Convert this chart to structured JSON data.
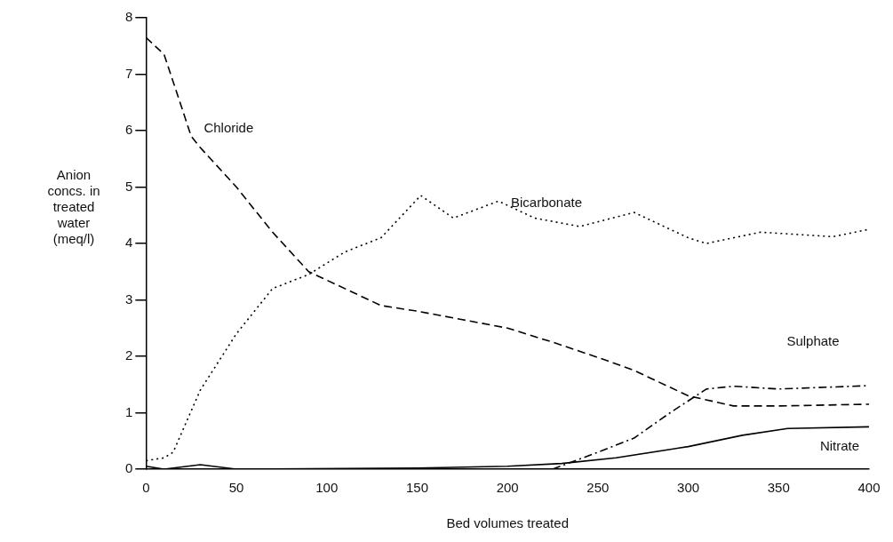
{
  "chart_data": {
    "type": "line",
    "xlabel": "Bed volumes treated",
    "ylabel": "Anion concs. in treated water (meq/l)",
    "xlim": [
      0,
      400
    ],
    "xticks": [
      0,
      50,
      100,
      150,
      200,
      250,
      300,
      350,
      400
    ],
    "ylim": [
      0,
      8
    ],
    "yticks": [
      0,
      1,
      2,
      3,
      4,
      5,
      6,
      7,
      8
    ],
    "grid": false,
    "legend": false,
    "marker": "none",
    "series": [
      {
        "name": "Chloride",
        "color": "#000000",
        "line_style": "dashed",
        "x": [
          0,
          10,
          25,
          30,
          50,
          70,
          90,
          100,
          130,
          150,
          175,
          200,
          225,
          250,
          270,
          300,
          325,
          350,
          400
        ],
        "values": [
          7.65,
          7.35,
          5.9,
          5.7,
          5.0,
          4.2,
          3.5,
          3.35,
          2.9,
          2.8,
          2.65,
          2.5,
          2.25,
          1.98,
          1.75,
          1.3,
          1.12,
          1.12,
          1.15
        ]
      },
      {
        "name": "Bicarbonate",
        "color": "#000000",
        "line_style": "dotted",
        "x": [
          0,
          10,
          15,
          30,
          50,
          70,
          90,
          110,
          130,
          152,
          170,
          195,
          215,
          240,
          270,
          300,
          310,
          340,
          380,
          400
        ],
        "values": [
          0.15,
          0.2,
          0.3,
          1.4,
          2.4,
          3.2,
          3.45,
          3.85,
          4.1,
          4.85,
          4.45,
          4.75,
          4.45,
          4.3,
          4.55,
          4.1,
          4.0,
          4.2,
          4.12,
          4.25
        ]
      },
      {
        "name": "Sulphate",
        "color": "#000000",
        "line_style": "dashdot",
        "x": [
          225,
          250,
          270,
          290,
          310,
          325,
          350,
          400
        ],
        "values": [
          0,
          0.3,
          0.55,
          1.0,
          1.42,
          1.47,
          1.42,
          1.48
        ]
      },
      {
        "name": "Nitrate",
        "color": "#000000",
        "line_style": "solid",
        "x": [
          0,
          10,
          30,
          50,
          150,
          200,
          230,
          260,
          300,
          330,
          355,
          400
        ],
        "values": [
          0.05,
          0,
          0.08,
          0,
          0.02,
          0.05,
          0.1,
          0.2,
          0.4,
          0.6,
          0.72,
          0.75
        ]
      }
    ]
  }
}
